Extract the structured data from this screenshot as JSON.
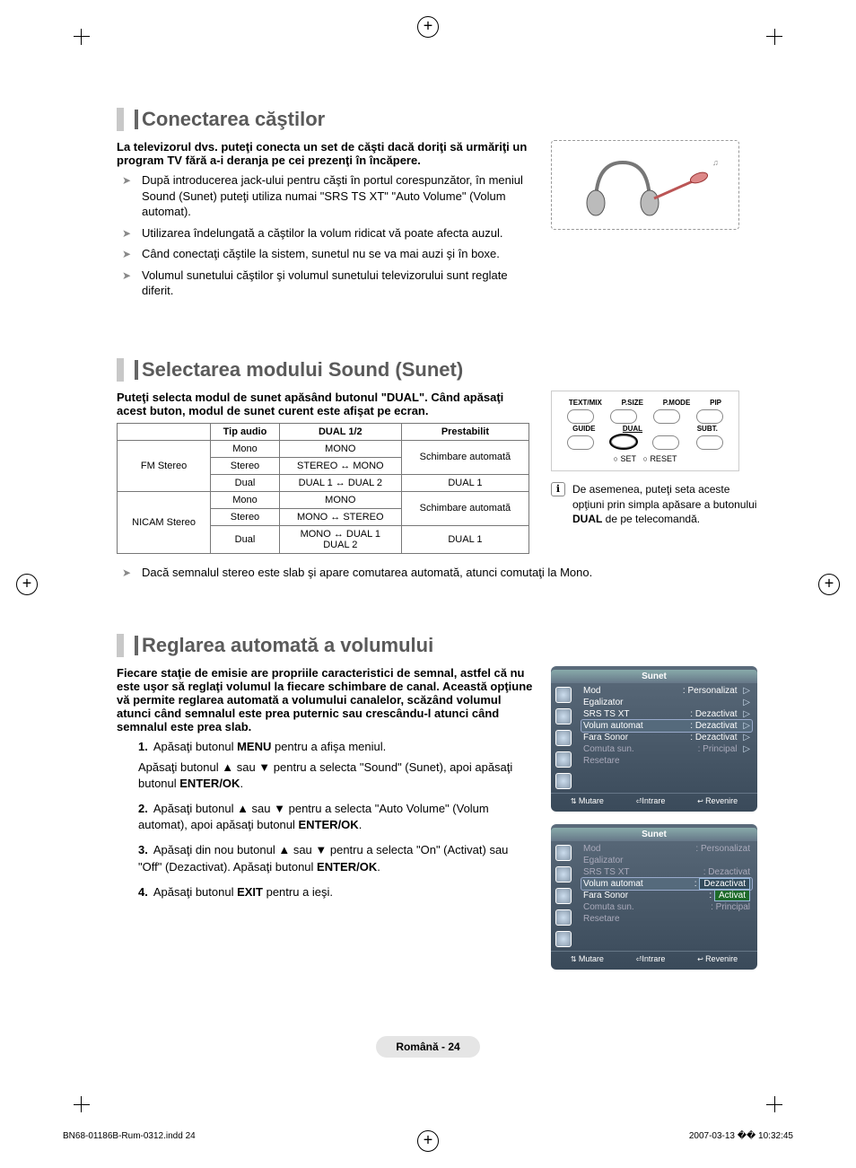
{
  "sections": {
    "headphones": {
      "title": "Conectarea căştilor",
      "lead": "La televizorul dvs. puteţi conecta un set de căşti dacă doriţi să urmăriţi un program TV fără a-i deranja pe cei prezenţi în încăpere.",
      "bullets": [
        "După introducerea jack-ului pentru căşti în portul corespunzător, în meniul Sound (Sunet) puteţi utiliza numai \"SRS TS XT\" \"Auto Volume\" (Volum automat).",
        "Utilizarea îndelungată a căştilor la volum ridicat vă poate afecta auzul.",
        "Când conectaţi căştile la sistem, sunetul nu se va mai auzi şi în boxe.",
        "Volumul sunetului căştilor şi volumul sunetului televizorului sunt reglate diferit."
      ]
    },
    "sound_mode": {
      "title": "Selectarea modului Sound (Sunet)",
      "lead": "Puteţi selecta modul de sunet apăsând butonul \"DUAL\". Când apăsaţi acest buton, modul de sunet curent este afişat pe ecran.",
      "table": {
        "headers": [
          "",
          "Tip audio",
          "DUAL 1/2",
          "Prestabilit"
        ],
        "rows_fm": {
          "group": "FM Stereo",
          "rows": [
            {
              "tip": "Mono",
              "dual": "MONO",
              "preset": "Schimbare automată",
              "preset_rowspan": 2
            },
            {
              "tip": "Stereo",
              "dual": "STEREO ↔ MONO"
            },
            {
              "tip": "Dual",
              "dual": "DUAL 1 ↔ DUAL 2",
              "preset": "DUAL 1"
            }
          ]
        },
        "rows_nicam": {
          "group": "NICAM Stereo",
          "rows": [
            {
              "tip": "Mono",
              "dual": "MONO",
              "preset": "Schimbare automată",
              "preset_rowspan": 2
            },
            {
              "tip": "Stereo",
              "dual": "MONO ↔ STEREO"
            },
            {
              "tip": "Dual",
              "dual": "MONO ↔ DUAL 1\nDUAL 2",
              "preset": "DUAL 1"
            }
          ]
        }
      },
      "remote": {
        "r1": [
          "TEXT/MIX",
          "P.SIZE",
          "P.MODE",
          "PIP"
        ],
        "r2": [
          "GUIDE",
          "DUAL",
          "",
          "SUBT."
        ],
        "set": "SET",
        "reset": "RESET"
      },
      "info_icon": "ℹ",
      "info_text": "De asemenea, puteţi seta aceste opţiuni prin simpla apăsare a butonului DUAL de pe telecomandă.",
      "note": "Dacă semnalul stereo este slab şi apare comutarea automată, atunci comutaţi la Mono."
    },
    "auto_volume": {
      "title": "Reglarea automată a volumului",
      "lead": "Fiecare staţie de emisie are propriile caracteristici de semnal, astfel că nu este uşor să reglaţi volumul la fiecare schimbare de canal. Această opţiune vă permite reglarea automată a volumului canalelor, scăzând volumul atunci când semnalul este prea puternic sau crescându-l atunci când semnalul este prea slab.",
      "steps": [
        {
          "n": "1.",
          "t": "Apăsaţi butonul MENU pentru a afişa meniul.",
          "sub": "Apăsaţi butonul ▲ sau ▼ pentru a selecta \"Sound\" (Sunet), apoi apăsaţi butonul ENTER/OK."
        },
        {
          "n": "2.",
          "t": "Apăsaţi butonul ▲ sau ▼ pentru a selecta \"Auto Volume\" (Volum automat), apoi apăsaţi butonul ENTER/OK."
        },
        {
          "n": "3.",
          "t": "Apăsaţi din nou butonul ▲ sau ▼ pentru a selecta \"On\" (Activat) sau \"Off\" (Dezactivat). Apăsaţi butonul ENTER/OK."
        },
        {
          "n": "4.",
          "t": "Apăsaţi butonul EXIT pentru a ieşi."
        }
      ],
      "osd": {
        "title": "Sunet",
        "rows": [
          {
            "k": "Mod",
            "v": ": Personalizat",
            "arr": true
          },
          {
            "k": "Egalizator",
            "v": "",
            "arr": true
          },
          {
            "k": "SRS TS XT",
            "v": ": Dezactivat",
            "arr": true
          },
          {
            "k": "Volum automat",
            "v": ": Dezactivat",
            "arr": true,
            "hl": true
          },
          {
            "k": "Fara Sonor",
            "v": ": Dezactivat",
            "arr": true
          },
          {
            "k": "Comuta sun.",
            "v": ": Principal",
            "arr": true,
            "dim": true
          },
          {
            "k": "Resetare",
            "v": "",
            "arr": false,
            "dim": true
          }
        ],
        "footer": [
          "Mutare",
          "Intrare",
          "Revenire"
        ]
      },
      "osd2": {
        "title": "Sunet",
        "rows": [
          {
            "k": "Mod",
            "v": ": Personalizat",
            "dim": true
          },
          {
            "k": "Egalizator",
            "v": "",
            "dim": true
          },
          {
            "k": "SRS TS XT",
            "v": ": Dezactivat",
            "dim": true
          },
          {
            "k": "Volum automat",
            "v": ":",
            "box": "Dezactivat",
            "boxactive": false,
            "hl": true
          },
          {
            "k": "Fara Sonor",
            "v": ":",
            "box": "Activat",
            "boxactive": true
          },
          {
            "k": "Comuta sun.",
            "v": ": Principal",
            "dim": true
          },
          {
            "k": "Resetare",
            "v": "",
            "dim": true
          }
        ],
        "footer": [
          "Mutare",
          "Intrare",
          "Revenire"
        ]
      }
    }
  },
  "page_num": "Română - 24",
  "footer_left": "BN68-01186B-Rum-0312.indd   24",
  "footer_right": "2007-03-13   �� 10:32:45"
}
